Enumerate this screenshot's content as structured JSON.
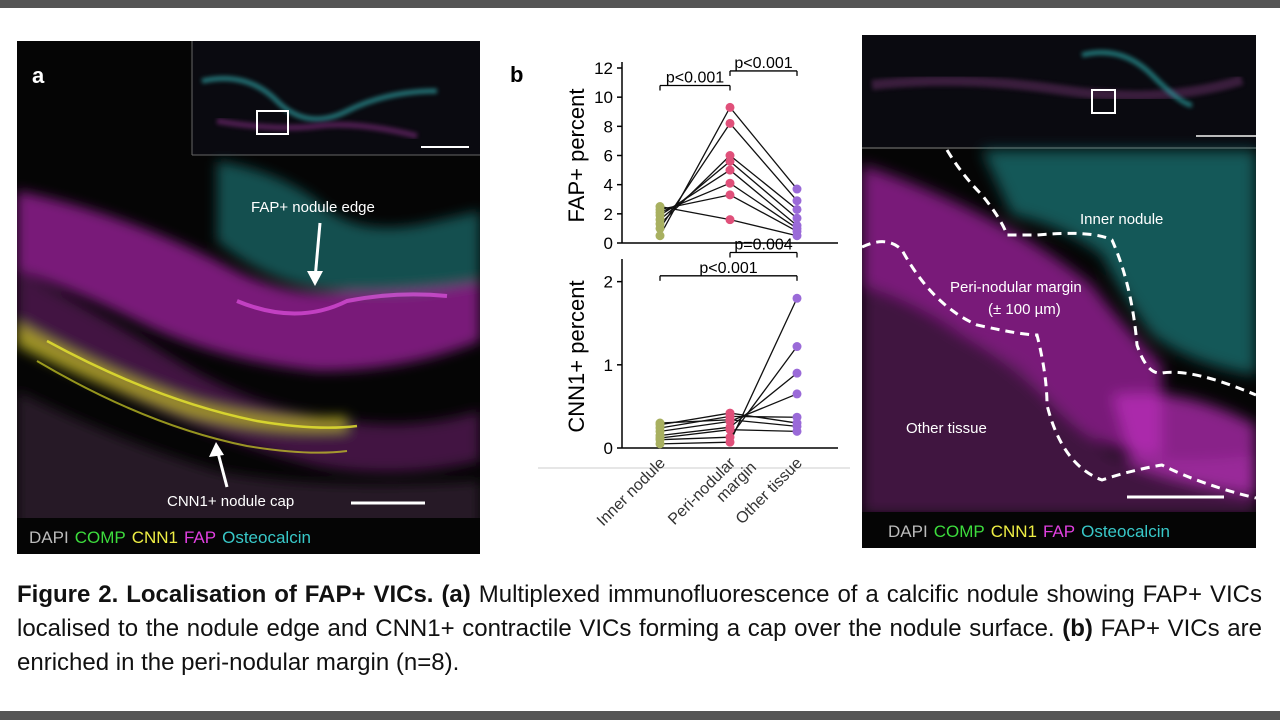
{
  "colors": {
    "dapi": "#bbbbbb",
    "comp": "#3ddc3d",
    "cnn1": "#eeee44",
    "fap": "#e040e0",
    "osteocalcin": "#38c8c8",
    "inner_nodule_points": "#a8b060",
    "peri_nodular_points": "#e0507a",
    "other_tissue_points": "#9a6ad8"
  },
  "panel_a": {
    "letter": "a",
    "label_fap_edge": "FAP+ nodule edge",
    "label_cnn1_cap": "CNN1+ nodule cap",
    "legend": [
      "DAPI",
      "COMP",
      "CNN1",
      "FAP",
      "Osteocalcin"
    ]
  },
  "panel_b": {
    "letter": "b"
  },
  "panel_c": {
    "label_inner": "Inner nodule",
    "label_peri_1": "Peri-nodular margin",
    "label_peri_2": "(± 100 µm)",
    "label_other": "Other tissue",
    "legend": [
      "DAPI",
      "COMP",
      "CNN1",
      "FAP",
      "Osteocalcin"
    ]
  },
  "chart_data": [
    {
      "type": "scatter",
      "ylabel": "FAP+ percent",
      "categories": [
        "Inner nodule",
        "Peri-nodular margin",
        "Other tissue"
      ],
      "ylim": [
        0,
        12
      ],
      "yticks": [
        0,
        2,
        4,
        6,
        8,
        10,
        12
      ],
      "pairs": [
        [
          0.5,
          9.3,
          3.7
        ],
        [
          1.0,
          8.2,
          2.9
        ],
        [
          1.3,
          6.0,
          2.3
        ],
        [
          1.6,
          5.6,
          1.7
        ],
        [
          1.9,
          5.0,
          1.2
        ],
        [
          2.1,
          4.1,
          1.0
        ],
        [
          2.3,
          3.3,
          0.8
        ],
        [
          2.5,
          1.6,
          0.5
        ]
      ],
      "annotations": [
        {
          "text": "p<0.001",
          "from": 0,
          "to": 1,
          "y": 10.8
        },
        {
          "text": "p<0.001",
          "from": 1,
          "to": 2,
          "y": 11.8
        }
      ]
    },
    {
      "type": "scatter",
      "ylabel": "CNN1+ percent",
      "categories": [
        "Inner nodule",
        "Peri-nodular margin",
        "Other tissue"
      ],
      "ylim": [
        0,
        2.2
      ],
      "yticks": [
        0,
        1,
        2
      ],
      "pairs": [
        [
          0.05,
          0.07,
          1.8
        ],
        [
          0.1,
          0.13,
          1.22
        ],
        [
          0.15,
          0.25,
          0.9
        ],
        [
          0.2,
          0.32,
          0.65
        ],
        [
          0.24,
          0.38,
          0.37
        ],
        [
          0.28,
          0.42,
          0.3
        ],
        [
          0.3,
          0.34,
          0.26
        ],
        [
          0.12,
          0.22,
          0.2
        ]
      ],
      "annotations": [
        {
          "text": "p=0.004",
          "from": 1,
          "to": 2,
          "y": 2.35
        },
        {
          "text": "p<0.001",
          "from": 0,
          "to": 2,
          "y": 2.07
        }
      ]
    }
  ],
  "caption": {
    "title": "Figure 2. Localisation of FAP+ VICs.",
    "a_tag": "(a)",
    "a_text": "Multiplexed immunofluorescence of a calcific nodule showing FAP+ VICs localised to the nodule edge and CNN1+ contractile VICs forming a cap over the nodule surface.",
    "b_tag": "(b)",
    "b_text": "FAP+ VICs are enriched in the peri-nodular margin (n=8)."
  }
}
